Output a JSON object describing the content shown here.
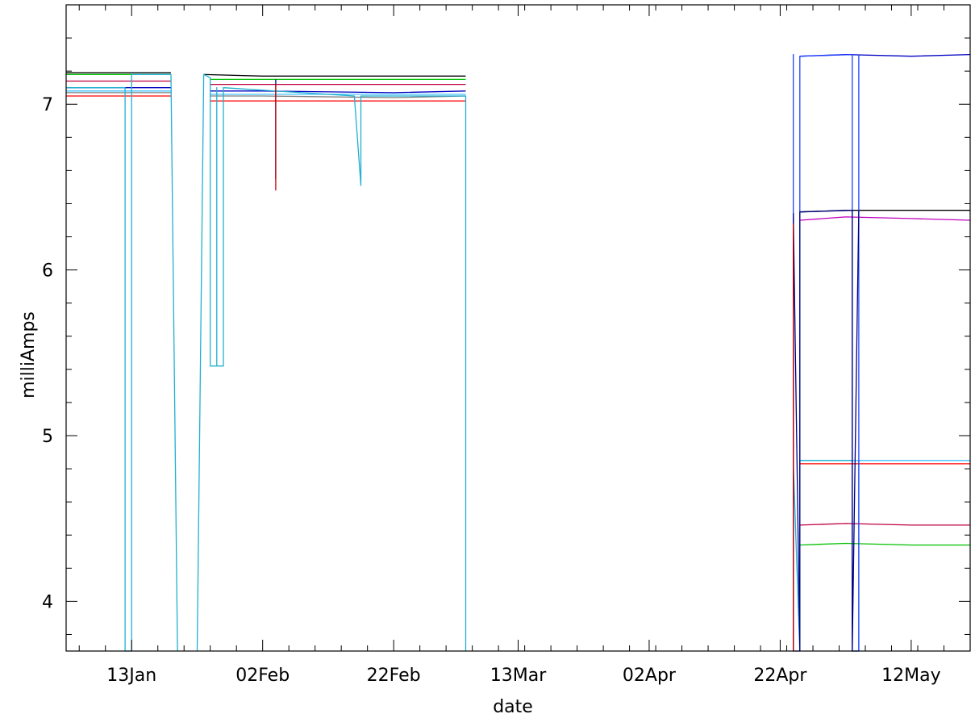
{
  "chart_data": {
    "type": "line",
    "title": "",
    "xlabel": "date",
    "ylabel": "milliAmps",
    "x_ticks": [
      "13Jan",
      "02Feb",
      "22Feb",
      "13Mar",
      "02Apr",
      "22Apr",
      "12May"
    ],
    "y_ticks": [
      "4",
      "5",
      "6",
      "7"
    ],
    "xlim": [
      "03Jan",
      "21May"
    ],
    "ylim": [
      3.7,
      7.6
    ],
    "grid": false,
    "legend": "none",
    "series": [
      {
        "color": "#000000",
        "segments": [
          [
            [
              "03Jan",
              7.19
            ],
            [
              "08Jan",
              7.19
            ],
            [
              "13Jan",
              7.19
            ],
            [
              "18Jan",
              7.19
            ],
            [
              "19Jan",
              7.19
            ]
          ],
          [
            [
              "24Jan",
              7.18
            ],
            [
              "02Feb",
              7.17
            ],
            [
              "12Feb",
              7.17
            ],
            [
              "22Feb",
              7.17
            ],
            [
              "04Mar",
              7.17
            ],
            [
              "05Mar",
              7.17
            ]
          ],
          [
            [
              "25Apr",
              6.35
            ],
            [
              "02May",
              6.36
            ],
            [
              "12May",
              6.36
            ],
            [
              "21May",
              6.36
            ]
          ]
        ]
      },
      {
        "color": "#00c000",
        "segments": [
          [
            [
              "03Jan",
              7.18
            ],
            [
              "13Jan",
              7.18
            ],
            [
              "19Jan",
              7.18
            ]
          ],
          [
            [
              "25Jan",
              7.15
            ],
            [
              "02Feb",
              7.15
            ],
            [
              "22Feb",
              7.15
            ],
            [
              "05Mar",
              7.15
            ]
          ],
          [
            [
              "25Apr",
              4.34
            ],
            [
              "02May",
              4.35
            ],
            [
              "12May",
              4.34
            ],
            [
              "21May",
              4.34
            ]
          ]
        ]
      },
      {
        "color": "#c00040",
        "segments": [
          [
            [
              "03Jan",
              7.14
            ],
            [
              "13Jan",
              7.14
            ],
            [
              "19Jan",
              7.14
            ]
          ],
          [
            [
              "25Jan",
              7.12
            ],
            [
              "02Feb",
              7.12
            ],
            [
              "22Feb",
              7.12
            ],
            [
              "05Mar",
              7.12
            ]
          ],
          [
            [
              "25Apr",
              4.46
            ],
            [
              "02May",
              4.47
            ],
            [
              "12May",
              4.46
            ],
            [
              "21May",
              4.46
            ]
          ]
        ]
      },
      {
        "color": "#0000c0",
        "segments": [
          [
            [
              "03Jan",
              7.1
            ],
            [
              "13Jan",
              7.1
            ],
            [
              "19Jan",
              7.1
            ]
          ],
          [
            [
              "25Jan",
              7.08
            ],
            [
              "02Feb",
              7.08
            ],
            [
              "22Feb",
              7.07
            ],
            [
              "05Mar",
              7.08
            ]
          ],
          [
            [
              "25Apr",
              7.29
            ],
            [
              "02May",
              7.3
            ],
            [
              "12May",
              7.29
            ],
            [
              "21May",
              7.3
            ]
          ]
        ]
      },
      {
        "color": "#40c0ff",
        "segments": [
          [
            [
              "03Jan",
              7.08
            ],
            [
              "13Jan",
              7.08
            ],
            [
              "19Jan",
              7.08
            ]
          ],
          [
            [
              "25Jan",
              7.06
            ],
            [
              "02Feb",
              7.06
            ],
            [
              "22Feb",
              7.06
            ],
            [
              "05Mar",
              7.06
            ]
          ],
          [
            [
              "25Apr",
              4.85
            ],
            [
              "02May",
              4.85
            ],
            [
              "12May",
              4.85
            ],
            [
              "21May",
              4.85
            ]
          ]
        ]
      },
      {
        "color": "#808080",
        "segments": [
          [
            [
              "03Jan",
              7.07
            ],
            [
              "13Jan",
              7.07
            ],
            [
              "19Jan",
              7.07
            ]
          ],
          [
            [
              "25Jan",
              7.05
            ],
            [
              "02Feb",
              7.05
            ],
            [
              "22Feb",
              7.04
            ],
            [
              "05Mar",
              7.05
            ]
          ]
        ]
      },
      {
        "color": "#ff0000",
        "segments": [
          [
            [
              "03Jan",
              7.05
            ],
            [
              "13Jan",
              7.05
            ],
            [
              "19Jan",
              7.05
            ]
          ],
          [
            [
              "25Jan",
              7.02
            ],
            [
              "02Feb",
              7.02
            ],
            [
              "22Feb",
              7.02
            ],
            [
              "05Mar",
              7.02
            ]
          ],
          [
            [
              "25Apr",
              4.83
            ],
            [
              "02May",
              4.83
            ],
            [
              "12May",
              4.83
            ],
            [
              "21May",
              4.83
            ]
          ]
        ]
      },
      {
        "color": "#c000c0",
        "segments": [
          [
            [
              "25Apr",
              6.3
            ],
            [
              "02May",
              6.32
            ],
            [
              "12May",
              6.31
            ],
            [
              "21May",
              6.3
            ]
          ]
        ]
      },
      {
        "color": "#20b0d0",
        "segments": [
          [
            [
              "03Jan",
              7.1
            ],
            [
              "12Jan",
              7.1
            ],
            [
              "12Jan",
              3.7
            ],
            [
              "13Jan",
              3.7
            ],
            [
              "13Jan",
              7.18
            ],
            [
              "19Jan",
              7.18
            ],
            [
              "20Jan",
              3.7
            ]
          ],
          [
            [
              "23Jan",
              3.7
            ],
            [
              "24Jan",
              7.18
            ],
            [
              "25Jan",
              7.16
            ],
            [
              "25Jan",
              5.42
            ],
            [
              "26Jan",
              5.42
            ],
            [
              "26Jan",
              7.1
            ],
            [
              "26Jan",
              5.42
            ],
            [
              "27Jan",
              5.42
            ],
            [
              "27Jan",
              7.1
            ],
            [
              "16Feb",
              7.05
            ],
            [
              "17Feb",
              6.51
            ],
            [
              "17Feb",
              7.05
            ],
            [
              "05Mar",
              7.05
            ],
            [
              "05Mar",
              3.7
            ]
          ],
          [
            [
              "24Apr",
              3.7
            ],
            [
              "24Apr",
              4.83
            ],
            [
              "25Apr",
              3.7
            ],
            [
              "25Apr",
              4.85
            ],
            [
              "03May",
              4.85
            ],
            [
              "03May",
              3.7
            ],
            [
              "04May",
              3.7
            ],
            [
              "04May",
              4.85
            ]
          ]
        ]
      },
      {
        "color": "#2040ff",
        "segments": [
          [
            [
              "24Apr",
              3.7
            ],
            [
              "24Apr",
              7.3
            ],
            [
              "24Apr",
              3.7
            ],
            [
              "25Apr",
              3.7
            ],
            [
              "25Apr",
              7.29
            ],
            [
              "03May",
              7.3
            ],
            [
              "03May",
              3.7
            ],
            [
              "04May",
              3.7
            ],
            [
              "04May",
              7.3
            ]
          ]
        ]
      },
      {
        "color": "#000080",
        "segments": [
          [
            [
              "04Feb",
              7.15
            ],
            [
              "04Feb",
              6.55
            ],
            [
              "04Feb",
              7.15
            ]
          ],
          [
            [
              "24Apr",
              3.7
            ],
            [
              "24Apr",
              6.34
            ],
            [
              "25Apr",
              3.7
            ],
            [
              "25Apr",
              6.35
            ],
            [
              "03May",
              6.36
            ],
            [
              "03May",
              3.7
            ],
            [
              "04May",
              6.36
            ]
          ]
        ]
      },
      {
        "color": "#c00000",
        "segments": [
          [
            [
              "04Feb",
              7.12
            ],
            [
              "04Feb",
              6.48
            ]
          ],
          [
            [
              "24Apr",
              3.7
            ],
            [
              "24Apr",
              6.28
            ]
          ]
        ]
      }
    ]
  }
}
